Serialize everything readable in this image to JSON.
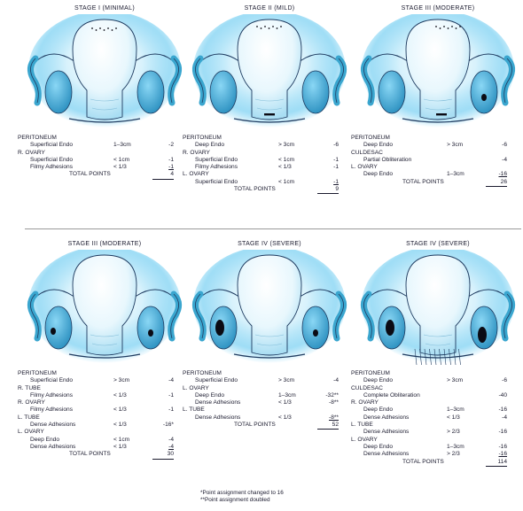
{
  "colors": {
    "glow": "#5ec8f0",
    "tissue": "#3aa6cf",
    "outline": "#1e3a5f",
    "lesion": "#0b0b14"
  },
  "panels": [
    {
      "title": "STAGE I (MINIMAL)",
      "rows": [
        {
          "type": "section",
          "label": "PERITONEUM"
        },
        {
          "type": "item",
          "label": "Superficial Endo",
          "size": "1–3cm",
          "points": "-2"
        },
        {
          "type": "section",
          "label": "R. OVARY"
        },
        {
          "type": "item",
          "label": "Superficial Endo",
          "size": "< 1cm",
          "points": "-1"
        },
        {
          "type": "item",
          "label": "Filmy Adhesions",
          "size": "< 1/3",
          "points": "-1",
          "underline": true
        },
        {
          "type": "total",
          "label": "TOTAL POINTS",
          "points": "4"
        }
      ]
    },
    {
      "title": "STAGE II (MILD)",
      "rows": [
        {
          "type": "section",
          "label": "PERITONEUM"
        },
        {
          "type": "item",
          "label": "Deep Endo",
          "size": "> 3cm",
          "points": "-6"
        },
        {
          "type": "section",
          "label": "R. OVARY"
        },
        {
          "type": "item",
          "label": "Superficial Endo",
          "size": "< 1cm",
          "points": "-1"
        },
        {
          "type": "item",
          "label": "Filmy Adhesions",
          "size": "< 1/3",
          "points": "-1"
        },
        {
          "type": "section",
          "label": "L. OVARY"
        },
        {
          "type": "item",
          "label": "Superficial Endo",
          "size": "< 1cm",
          "points": "-1",
          "underline": true
        },
        {
          "type": "total",
          "label": "TOTAL POINTS",
          "points": "9"
        }
      ]
    },
    {
      "title": "STAGE III (MODERATE)",
      "rows": [
        {
          "type": "section",
          "label": "PERITONEUM"
        },
        {
          "type": "item",
          "label": "Deep Endo",
          "size": "> 3cm",
          "points": "-6"
        },
        {
          "type": "section",
          "label": "CULDESAC"
        },
        {
          "type": "item",
          "label": "Partial Obliteration",
          "size": "",
          "points": "-4"
        },
        {
          "type": "section",
          "label": "L. OVARY"
        },
        {
          "type": "item",
          "label": "Deep Endo",
          "size": "1–3cm",
          "points": "-16",
          "underline": true
        },
        {
          "type": "total",
          "label": "TOTAL POINTS",
          "points": "26"
        }
      ]
    },
    {
      "title": "STAGE III (MODERATE)",
      "rows": [
        {
          "type": "section",
          "label": "PERITONEUM"
        },
        {
          "type": "item",
          "label": "Superficial Endo",
          "size": "> 3cm",
          "points": "-4"
        },
        {
          "type": "section",
          "label": "R. TUBE"
        },
        {
          "type": "item",
          "label": "Filmy Adhesions",
          "size": "< 1/3",
          "points": "-1"
        },
        {
          "type": "section",
          "label": "R. OVARY"
        },
        {
          "type": "item",
          "label": "Filmy Adhesions",
          "size": "< 1/3",
          "points": "-1"
        },
        {
          "type": "section",
          "label": "L. TUBE"
        },
        {
          "type": "item",
          "label": "Dense Adhesions",
          "size": "< 1/3",
          "points": "-16*"
        },
        {
          "type": "section",
          "label": "L. OVARY"
        },
        {
          "type": "item",
          "label": "Deep Endo",
          "size": "< 1cm",
          "points": "-4"
        },
        {
          "type": "item",
          "label": "Dense Adhesions",
          "size": "< 1/3",
          "points": "-4",
          "underline": true
        },
        {
          "type": "total",
          "label": "TOTAL POINTS",
          "points": "30"
        }
      ]
    },
    {
      "title": "STAGE IV (SEVERE)",
      "rows": [
        {
          "type": "section",
          "label": "PERITONEUM"
        },
        {
          "type": "item",
          "label": "Superficial Endo",
          "size": "> 3cm",
          "points": "-4"
        },
        {
          "type": "section",
          "label": "L. OVARY"
        },
        {
          "type": "item",
          "label": "Deep Endo",
          "size": "1–3cm",
          "points": "-32**"
        },
        {
          "type": "item",
          "label": "Dense Adhesions",
          "size": "< 1/3",
          "points": "-8**"
        },
        {
          "type": "section",
          "label": "L. TUBE"
        },
        {
          "type": "item",
          "label": "Dense Adhesions",
          "size": "< 1/3",
          "points": "-8**",
          "underline": true
        },
        {
          "type": "total",
          "label": "TOTAL POINTS",
          "points": "52"
        }
      ]
    },
    {
      "title": "STAGE IV (SEVERE)",
      "rows": [
        {
          "type": "section",
          "label": "PERITONEUM"
        },
        {
          "type": "item",
          "label": "Deep Endo",
          "size": "> 3cm",
          "points": "-6"
        },
        {
          "type": "section",
          "label": "CULDESAC"
        },
        {
          "type": "item",
          "label": "Complete Obliteration",
          "size": "",
          "points": "-40"
        },
        {
          "type": "section",
          "label": "R. OVARY"
        },
        {
          "type": "item",
          "label": "Deep Endo",
          "size": "1–3cm",
          "points": "-16"
        },
        {
          "type": "item",
          "label": "Dense Adhesions",
          "size": "< 1/3",
          "points": "-4"
        },
        {
          "type": "section",
          "label": "L. TUBE"
        },
        {
          "type": "item",
          "label": "Dense Adhesions",
          "size": "> 2/3",
          "points": "-16"
        },
        {
          "type": "section",
          "label": "L. OVARY"
        },
        {
          "type": "item",
          "label": "Deep Endo",
          "size": "1–3cm",
          "points": "-16"
        },
        {
          "type": "item",
          "label": "Dense Adhesions",
          "size": "> 2/3",
          "points": "-16",
          "underline": true
        },
        {
          "type": "total",
          "label": "TOTAL POINTS",
          "points": "114"
        }
      ]
    }
  ],
  "footnotes": [
    "*Point assignment changed to 16",
    "**Point assignment doubled"
  ]
}
